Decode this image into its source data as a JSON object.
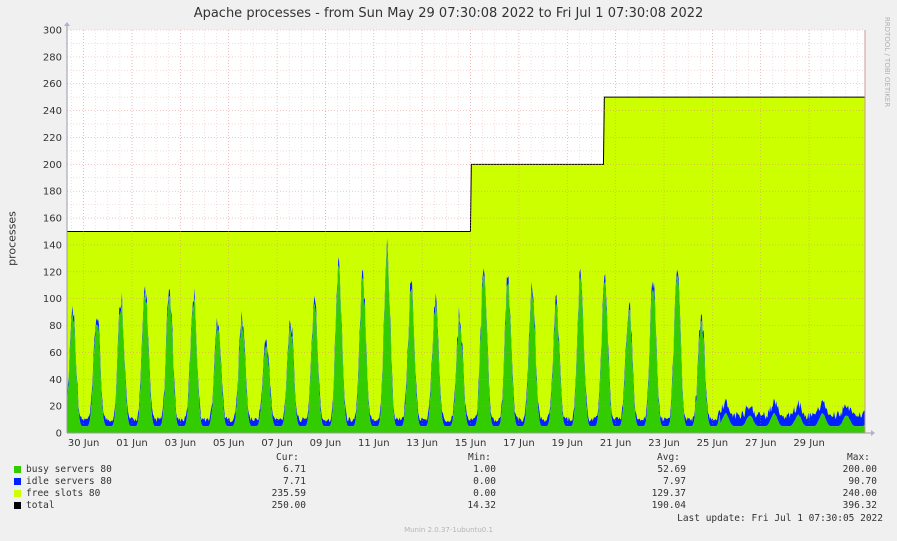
{
  "chart_data": {
    "type": "area",
    "title": "Apache processes - from Sun May 29 07:30:08 2022 to Fri Jul  1 07:30:08 2022",
    "ylabel": "processes",
    "xlabel": "",
    "ylim": [
      0,
      300
    ],
    "y_ticks": [
      "0",
      "20",
      "40",
      "60",
      "80",
      "100",
      "120",
      "140",
      "160",
      "180",
      "200",
      "220",
      "240",
      "260",
      "280",
      "300"
    ],
    "x_range": [
      "2022-05-29 07:30",
      "2022-07-01 07:30"
    ],
    "x_ticks": [
      {
        "label": "30 Jun",
        "date": "2022-05-30"
      },
      {
        "label": "01 Jun",
        "date": "2022-06-01"
      },
      {
        "label": "03 Jun",
        "date": "2022-06-03"
      },
      {
        "label": "05 Jun",
        "date": "2022-06-05"
      },
      {
        "label": "07 Jun",
        "date": "2022-06-07"
      },
      {
        "label": "09 Jun",
        "date": "2022-06-09"
      },
      {
        "label": "11 Jun",
        "date": "2022-06-11"
      },
      {
        "label": "13 Jun",
        "date": "2022-06-13"
      },
      {
        "label": "15 Jun",
        "date": "2022-06-15"
      },
      {
        "label": "17 Jun",
        "date": "2022-06-17"
      },
      {
        "label": "19 Jun",
        "date": "2022-06-19"
      },
      {
        "label": "21 Jun",
        "date": "2022-06-21"
      },
      {
        "label": "23 Jun",
        "date": "2022-06-23"
      },
      {
        "label": "25 Jun",
        "date": "2022-06-25"
      },
      {
        "label": "27 Jun",
        "date": "2022-06-27"
      },
      {
        "label": "29 Jun",
        "date": "2022-06-29"
      }
    ],
    "grid": true,
    "stacked": true,
    "series": [
      {
        "name": "busy servers 80",
        "color": "#33cc00",
        "daily_peaks": [
          95,
          90,
          105,
          112,
          110,
          108,
          88,
          88,
          70,
          85,
          100,
          130,
          120,
          142,
          112,
          100,
          90,
          132,
          118,
          112,
          98,
          122,
          118,
          100,
          115,
          130,
          90,
          15,
          14,
          15,
          14,
          15,
          14
        ],
        "daily_troughs": [
          5,
          5,
          5,
          5,
          5,
          5,
          5,
          5,
          5,
          5,
          5,
          5,
          5,
          5,
          5,
          5,
          5,
          5,
          5,
          5,
          5,
          5,
          5,
          5,
          5,
          5,
          5,
          5,
          5,
          5,
          5,
          5,
          5
        ],
        "cur": "6.71",
        "min": "1.00",
        "avg": "52.69",
        "max": "200.00"
      },
      {
        "name": "idle servers 80",
        "color": "#0022ff",
        "typical_values": [
          5,
          5,
          5,
          5,
          5,
          5,
          5,
          5,
          5,
          5,
          5,
          5,
          5,
          5,
          5,
          5,
          5,
          5,
          5,
          5,
          5,
          5,
          5,
          5,
          5,
          5,
          5,
          8,
          8,
          8,
          8,
          8,
          8
        ],
        "cur": "7.71",
        "min": "0.00",
        "avg": "7.97",
        "max": "90.70"
      },
      {
        "name": "free slots 80",
        "color": "#ccff00",
        "cur": "235.59",
        "min": "0.00",
        "avg": "129.37",
        "max": "240.00"
      },
      {
        "name": "total",
        "color": "#000000",
        "steps": [
          {
            "from": "2022-05-29 07:30",
            "value": 150
          },
          {
            "from": "2022-06-15 00:00",
            "value": 200
          },
          {
            "from": "2022-06-20 12:00",
            "value": 250
          }
        ],
        "cur": "250.00",
        "min": "14.32",
        "avg": "190.04",
        "max": "396.32"
      }
    ]
  },
  "legend": {
    "headers": {
      "cur": "Cur:",
      "min": "Min:",
      "avg": "Avg:",
      "max": "Max:"
    }
  },
  "last_update": "Last update:  Fri Jul  1 07:30:05 2022",
  "footer": "Munin 2.0.37-1ubuntu0.1",
  "watermark": "RRDTOOL / TOBI OETIKER"
}
